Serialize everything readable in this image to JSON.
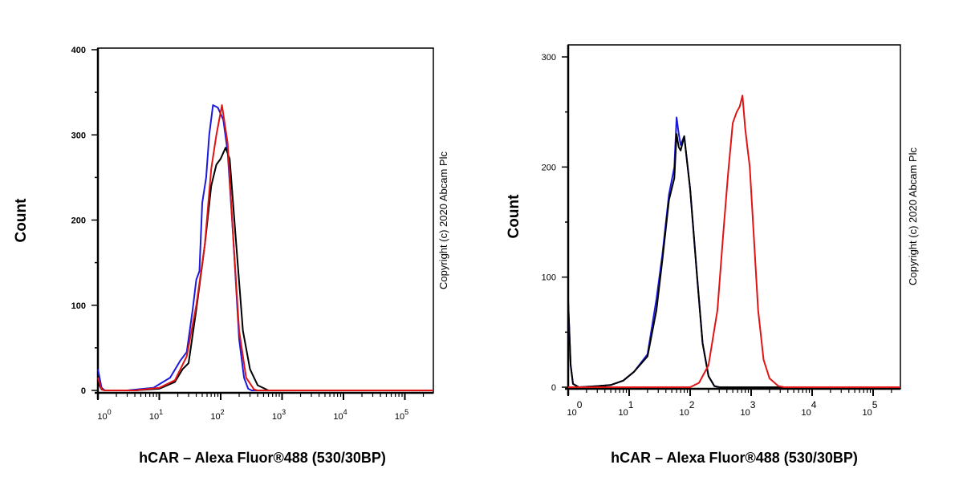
{
  "chart_data": [
    {
      "type": "line",
      "xscale": "log",
      "xlim": [
        1,
        300000
      ],
      "ylim": [
        0,
        400
      ],
      "yticks": [
        0,
        100,
        200,
        300,
        400
      ],
      "xticks": [
        1,
        10,
        100,
        1000,
        10000,
        100000
      ],
      "xtick_labels": [
        {
          "base": "10",
          "exp": "0"
        },
        {
          "base": "10",
          "exp": "1"
        },
        {
          "base": "10",
          "exp": "2"
        },
        {
          "base": "10",
          "exp": "3"
        },
        {
          "base": "10",
          "exp": "4"
        },
        {
          "base": "10",
          "exp": "5"
        }
      ],
      "xlabel": "hCAR – Alexa Fluor®488 (530/30BP)",
      "ylabel": "Count",
      "annotation": "Copyright (c) 2020 Abcam Plc",
      "grid": false,
      "series": [
        {
          "color": "#1a1adc",
          "points": [
            [
              1,
              25
            ],
            [
              1.15,
              3
            ],
            [
              1.3,
              0
            ],
            [
              3,
              0
            ],
            [
              8,
              3
            ],
            [
              15,
              15
            ],
            [
              22,
              35
            ],
            [
              28,
              45
            ],
            [
              35,
              95
            ],
            [
              40,
              130
            ],
            [
              45,
              140
            ],
            [
              50,
              220
            ],
            [
              58,
              250
            ],
            [
              65,
              300
            ],
            [
              75,
              335
            ],
            [
              90,
              332
            ],
            [
              110,
              318
            ],
            [
              130,
              280
            ],
            [
              160,
              180
            ],
            [
              200,
              60
            ],
            [
              240,
              15
            ],
            [
              280,
              2
            ],
            [
              320,
              0
            ],
            [
              300000,
              0
            ]
          ]
        },
        {
          "color": "#000000",
          "points": [
            [
              1,
              10
            ],
            [
              1.15,
              1
            ],
            [
              1.3,
              0
            ],
            [
              4,
              0
            ],
            [
              10,
              2
            ],
            [
              18,
              10
            ],
            [
              24,
              25
            ],
            [
              30,
              32
            ],
            [
              40,
              95
            ],
            [
              55,
              170
            ],
            [
              70,
              240
            ],
            [
              85,
              265
            ],
            [
              100,
              272
            ],
            [
              120,
              285
            ],
            [
              140,
              272
            ],
            [
              180,
              170
            ],
            [
              230,
              70
            ],
            [
              300,
              25
            ],
            [
              400,
              6
            ],
            [
              600,
              0
            ],
            [
              300000,
              0
            ]
          ]
        },
        {
          "color": "#e01414",
          "points": [
            [
              1,
              15
            ],
            [
              1.15,
              1
            ],
            [
              1.3,
              0
            ],
            [
              4,
              0
            ],
            [
              10,
              3
            ],
            [
              18,
              12
            ],
            [
              28,
              40
            ],
            [
              40,
              100
            ],
            [
              55,
              170
            ],
            [
              70,
              260
            ],
            [
              85,
              300
            ],
            [
              105,
              335
            ],
            [
              130,
              290
            ],
            [
              160,
              180
            ],
            [
              200,
              70
            ],
            [
              260,
              15
            ],
            [
              350,
              1
            ],
            [
              400,
              0
            ],
            [
              300000,
              0
            ]
          ]
        }
      ]
    },
    {
      "type": "line",
      "xscale": "log",
      "xlim": [
        1,
        280000
      ],
      "ylim": [
        0,
        310
      ],
      "yticks": [
        0,
        100,
        200,
        300
      ],
      "xticks": [
        1,
        10,
        100,
        1000,
        10000,
        100000
      ],
      "xtick_labels": [
        {
          "base": "10",
          "exp": "0"
        },
        {
          "base": "10",
          "exp": "1"
        },
        {
          "base": "10",
          "exp": "2"
        },
        {
          "base": "10",
          "exp": "3"
        },
        {
          "base": "10",
          "exp": "4"
        },
        {
          "base": "10",
          "exp": "5"
        }
      ],
      "xlabel": "hCAR – Alexa Fluor®488 (530/30BP)",
      "ylabel": "Count",
      "annotation": "Copyright (c) 2020 Abcam Plc",
      "grid": false,
      "series": [
        {
          "color": "#1a1adc",
          "points": [
            [
              1,
              78
            ],
            [
              1.1,
              20
            ],
            [
              1.2,
              3
            ],
            [
              1.5,
              0
            ],
            [
              3,
              1
            ],
            [
              5,
              2
            ],
            [
              8,
              6
            ],
            [
              12,
              14
            ],
            [
              20,
              30
            ],
            [
              28,
              80
            ],
            [
              35,
              120
            ],
            [
              45,
              175
            ],
            [
              55,
              200
            ],
            [
              60,
              245
            ],
            [
              65,
              230
            ],
            [
              70,
              220
            ],
            [
              80,
              228
            ],
            [
              100,
              180
            ],
            [
              130,
              100
            ],
            [
              160,
              40
            ],
            [
              200,
              10
            ],
            [
              250,
              1
            ],
            [
              300,
              0
            ],
            [
              280000,
              0
            ]
          ]
        },
        {
          "color": "#000000",
          "points": [
            [
              1,
              78
            ],
            [
              1.1,
              20
            ],
            [
              1.2,
              3
            ],
            [
              1.5,
              0
            ],
            [
              3,
              1
            ],
            [
              5,
              2
            ],
            [
              8,
              6
            ],
            [
              12,
              14
            ],
            [
              20,
              28
            ],
            [
              28,
              70
            ],
            [
              35,
              115
            ],
            [
              45,
              170
            ],
            [
              55,
              190
            ],
            [
              60,
              230
            ],
            [
              65,
              218
            ],
            [
              70,
              215
            ],
            [
              80,
              228
            ],
            [
              100,
              180
            ],
            [
              130,
              100
            ],
            [
              160,
              40
            ],
            [
              200,
              10
            ],
            [
              250,
              1
            ],
            [
              300,
              0
            ],
            [
              280000,
              0
            ]
          ]
        },
        {
          "color": "#e01414",
          "points": [
            [
              1,
              0
            ],
            [
              100,
              0
            ],
            [
              140,
              4
            ],
            [
              200,
              20
            ],
            [
              280,
              70
            ],
            [
              350,
              140
            ],
            [
              420,
              195
            ],
            [
              500,
              240
            ],
            [
              580,
              250
            ],
            [
              650,
              255
            ],
            [
              720,
              265
            ],
            [
              800,
              235
            ],
            [
              880,
              215
            ],
            [
              950,
              200
            ],
            [
              1100,
              140
            ],
            [
              1300,
              70
            ],
            [
              1600,
              25
            ],
            [
              2000,
              8
            ],
            [
              2800,
              1
            ],
            [
              3500,
              0
            ],
            [
              280000,
              0
            ]
          ]
        }
      ]
    }
  ]
}
